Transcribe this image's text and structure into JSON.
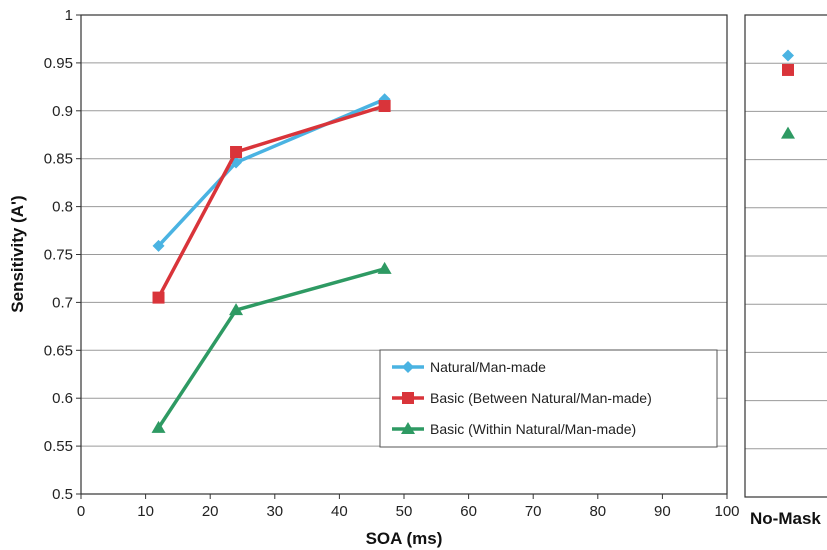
{
  "chart_data": [
    {
      "type": "line",
      "xlabel": "SOA (ms)",
      "ylabel": "Sensitivity (A')",
      "xlim": [
        0,
        100
      ],
      "ylim": [
        0.5,
        1
      ],
      "xticks": [
        "0",
        "10",
        "20",
        "30",
        "40",
        "50",
        "60",
        "70",
        "80",
        "90",
        "100"
      ],
      "yticks": [
        "0.5",
        "0.55",
        "0.6",
        "0.65",
        "0.7",
        "0.75",
        "0.8",
        "0.85",
        "0.9",
        "0.95",
        "1"
      ],
      "grid": "horizontal",
      "legend_position": "bottom-right",
      "series": [
        {
          "name": "Natural/Man-made",
          "color": "#4AB3E2",
          "marker": "diamond",
          "x": [
            12,
            24,
            47
          ],
          "y": [
            0.759,
            0.846,
            0.912
          ]
        },
        {
          "name": "Basic (Between Natural/Man-made)",
          "color": "#D9343A",
          "marker": "square",
          "x": [
            12,
            24,
            47
          ],
          "y": [
            0.705,
            0.857,
            0.905
          ]
        },
        {
          "name": "Basic (Within Natural/Man-made)",
          "color": "#2E9A63",
          "marker": "triangle",
          "x": [
            12,
            24,
            47
          ],
          "y": [
            0.569,
            0.692,
            0.735
          ]
        }
      ]
    },
    {
      "type": "scatter",
      "categories": [
        "No-Mask"
      ],
      "ylim": [
        0.5,
        1
      ],
      "grid": "horizontal",
      "series": [
        {
          "color": "#4AB3E2",
          "marker": "diamond",
          "values": [
            0.958
          ]
        },
        {
          "color": "#D9343A",
          "marker": "square",
          "values": [
            0.943
          ]
        },
        {
          "color": "#2E9A63",
          "marker": "triangle",
          "values": [
            0.877
          ]
        }
      ]
    }
  ]
}
